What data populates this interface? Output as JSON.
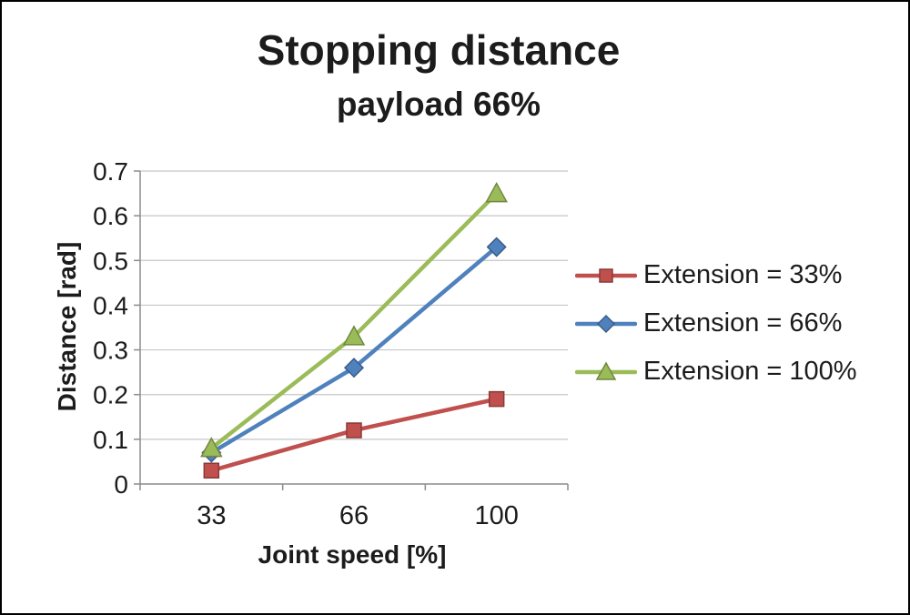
{
  "chart_data": {
    "type": "line",
    "title": "Stopping distance",
    "subtitle": "payload 66%",
    "xlabel": "Joint speed [%]",
    "ylabel": "Distance [rad]",
    "categories": [
      33,
      66,
      100
    ],
    "series": [
      {
        "name": "Extension = 33%",
        "marker": "square",
        "color": "#C0504D",
        "values": [
          0.03,
          0.12,
          0.19
        ]
      },
      {
        "name": "Extension = 66%",
        "marker": "diamond",
        "color": "#4F81BD",
        "values": [
          0.07,
          0.26,
          0.53
        ]
      },
      {
        "name": "Extension = 100%",
        "marker": "triangle",
        "color": "#9BBB59",
        "values": [
          0.08,
          0.33,
          0.65
        ]
      }
    ],
    "ylim": [
      0,
      0.7
    ],
    "ytick_labels": [
      "0",
      "0.1",
      "0.2",
      "0.3",
      "0.4",
      "0.5",
      "0.6",
      "0.7"
    ],
    "grid": true,
    "legend_position": "right"
  }
}
